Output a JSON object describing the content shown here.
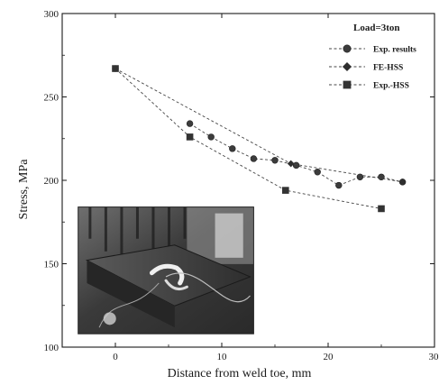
{
  "chart_data": {
    "type": "line",
    "title": "",
    "xlabel": "Distance from weld toe, mm",
    "ylabel": "Stress, MPa",
    "xlim": [
      -5,
      30
    ],
    "ylim": [
      100,
      300
    ],
    "x_ticks": [
      0,
      10,
      20,
      30
    ],
    "x_tick_labels": [
      "0",
      "10",
      "20",
      "30"
    ],
    "y_ticks": [
      100,
      150,
      200,
      250,
      300
    ],
    "y_tick_labels": [
      "100",
      "150",
      "200",
      "250",
      "300"
    ],
    "grid": false,
    "legend": {
      "position": "top-right",
      "title": "Load=3ton"
    },
    "series": [
      {
        "name": "Exp. results",
        "marker": "circle",
        "line": "dashed",
        "color": "#444444",
        "x": [
          7,
          9,
          11,
          13,
          15,
          17,
          19,
          21,
          23,
          25,
          27
        ],
        "y": [
          234,
          226,
          219,
          213,
          212,
          209,
          205,
          197,
          202,
          202,
          199
        ]
      },
      {
        "name": "FE-HSS",
        "marker": "diamond",
        "line": "dashed",
        "color": "#444444",
        "x": [
          0,
          16.5,
          27
        ],
        "y": [
          267,
          210,
          199
        ]
      },
      {
        "name": "Exp.-HSS",
        "marker": "square",
        "line": "dashed",
        "color": "#444444",
        "x": [
          0,
          7,
          16,
          25
        ],
        "y": [
          267,
          226,
          194,
          183
        ]
      }
    ],
    "inset_photo": {
      "description": "weld test specimen photograph",
      "x_range": [
        -3.5,
        13
      ],
      "y_range": [
        108,
        184
      ]
    }
  }
}
